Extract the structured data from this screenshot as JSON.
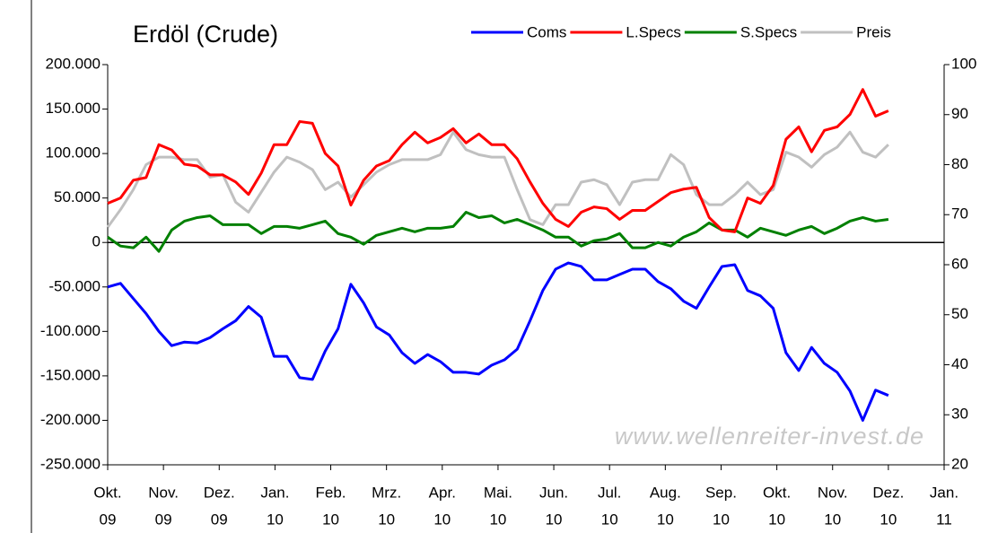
{
  "chart_data": {
    "type": "line",
    "title": "Erdöl (Crude)",
    "watermark": "www.wellenreiter-invest.de",
    "xaxis_labels": [
      [
        "Okt.",
        "09"
      ],
      [
        "Nov.",
        "09"
      ],
      [
        "Dez.",
        "09"
      ],
      [
        "Jan.",
        "10"
      ],
      [
        "Feb.",
        "10"
      ],
      [
        "Mrz.",
        "10"
      ],
      [
        "Apr.",
        "10"
      ],
      [
        "Mai.",
        "10"
      ],
      [
        "Jun.",
        "10"
      ],
      [
        "Jul.",
        "10"
      ],
      [
        "Aug.",
        "10"
      ],
      [
        "Sep.",
        "10"
      ],
      [
        "Okt.",
        "10"
      ],
      [
        "Nov.",
        "10"
      ],
      [
        "Dez.",
        "10"
      ],
      [
        "Jan.",
        "11"
      ]
    ],
    "ylim": [
      -250000,
      200000
    ],
    "yticks": [
      {
        "value": 200000,
        "label": "200.000"
      },
      {
        "value": 150000,
        "label": "150.000"
      },
      {
        "value": 100000,
        "label": "100.000"
      },
      {
        "value": 50000,
        "label": "50.000"
      },
      0,
      {
        "value": -50000,
        "label": "-50.000"
      },
      {
        "value": -100000,
        "label": "-100.000"
      },
      {
        "value": -150000,
        "label": "-150.000"
      },
      {
        "value": -200000,
        "label": "-200.000"
      },
      {
        "value": -250000,
        "label": "-250.000"
      }
    ],
    "negative_tick_color": "#ff0000",
    "y2lim": [
      20,
      100
    ],
    "y2ticks": [
      20,
      30,
      40,
      50,
      60,
      70,
      80,
      90,
      100
    ],
    "series": [
      {
        "name": "Coms",
        "color": "#0000ff",
        "values": [
          -50000,
          -46000,
          -63000,
          -80000,
          -100000,
          -116000,
          -112000,
          -113000,
          -107000,
          -97000,
          -88000,
          -72000,
          -84000,
          -128000,
          -128000,
          -152000,
          -154000,
          -122000,
          -97000,
          -47000,
          -68000,
          -95000,
          -104000,
          -124000,
          -136000,
          -126000,
          -134000,
          -146000,
          -146000,
          -148000,
          -138000,
          -132000,
          -120000,
          -88000,
          -54000,
          -30000,
          -23000,
          -27000,
          -42000,
          -42000,
          -36000,
          -30000,
          -30000,
          -44000,
          -52000,
          -66000,
          -74000,
          -50000,
          -27000,
          -25000,
          -54000,
          -60000,
          -74000,
          -124000,
          -144000,
          -118000,
          -136000,
          -146000,
          -167000,
          -200000,
          -166000,
          -172000
        ]
      },
      {
        "name": "L.Specs",
        "color": "#ff0000",
        "values": [
          44000,
          50000,
          70000,
          73000,
          110000,
          104000,
          88000,
          86000,
          76000,
          76000,
          68000,
          54000,
          78000,
          110000,
          110000,
          136000,
          134000,
          100000,
          86000,
          42000,
          70000,
          86000,
          92000,
          110000,
          124000,
          112000,
          118000,
          128000,
          112000,
          122000,
          110000,
          110000,
          94000,
          68000,
          44000,
          26000,
          18000,
          34000,
          40000,
          38000,
          26000,
          36000,
          36000,
          46000,
          56000,
          60000,
          62000,
          28000,
          14000,
          12000,
          50000,
          44000,
          64000,
          116000,
          130000,
          102000,
          126000,
          130000,
          144000,
          172000,
          142000,
          148000
        ]
      },
      {
        "name": "S.Specs",
        "color": "#008000",
        "values": [
          6000,
          -4000,
          -6000,
          6000,
          -10000,
          14000,
          24000,
          28000,
          30000,
          20000,
          20000,
          20000,
          10000,
          18000,
          18000,
          16000,
          20000,
          24000,
          10000,
          6000,
          -2000,
          8000,
          12000,
          16000,
          12000,
          16000,
          16000,
          18000,
          34000,
          28000,
          30000,
          22000,
          26000,
          20000,
          14000,
          6000,
          6000,
          -4000,
          2000,
          4000,
          10000,
          -6000,
          -6000,
          0,
          -4000,
          6000,
          12000,
          22000,
          14000,
          14000,
          6000,
          16000,
          12000,
          8000,
          14000,
          18000,
          10000,
          16000,
          24000,
          28000,
          24000,
          26000
        ]
      },
      {
        "name": "Preis",
        "color": "#c0c0c0",
        "axis": "y2",
        "values": [
          67.5,
          71,
          75,
          80,
          81.5,
          81.5,
          81,
          81,
          77.5,
          78,
          72.5,
          70.5,
          74.5,
          78.5,
          81.5,
          80.5,
          79,
          75,
          76.5,
          73.5,
          76,
          78.5,
          80,
          81,
          81,
          81,
          82,
          86.5,
          83,
          82,
          81.5,
          81.5,
          75,
          69,
          68,
          72,
          72,
          76.5,
          77,
          76,
          72,
          76.5,
          77,
          77,
          82,
          80,
          74,
          72,
          72,
          74,
          76.5,
          74,
          75,
          82.5,
          81.5,
          79.5,
          82,
          83.5,
          86.5,
          82.5,
          81.5,
          84
        ]
      }
    ]
  }
}
